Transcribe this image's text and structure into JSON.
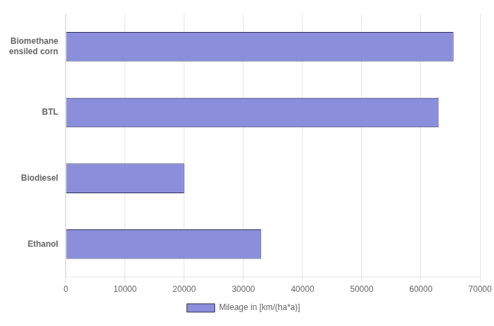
{
  "chart_data": {
    "type": "bar",
    "orientation": "horizontal",
    "categories": [
      "Ethanol",
      "Biodiesel",
      "BTL",
      "Biomethane\nensiled corn"
    ],
    "series": [
      {
        "name": "Mileage in [km/(ha*a)]",
        "color": "#8B8FDB",
        "values": [
          33000,
          20000,
          63000,
          65500
        ]
      }
    ],
    "xlim": [
      0,
      70000
    ],
    "xticks": [
      0,
      10000,
      20000,
      30000,
      40000,
      50000,
      60000,
      70000
    ],
    "grid": true,
    "legend": "bottom"
  }
}
